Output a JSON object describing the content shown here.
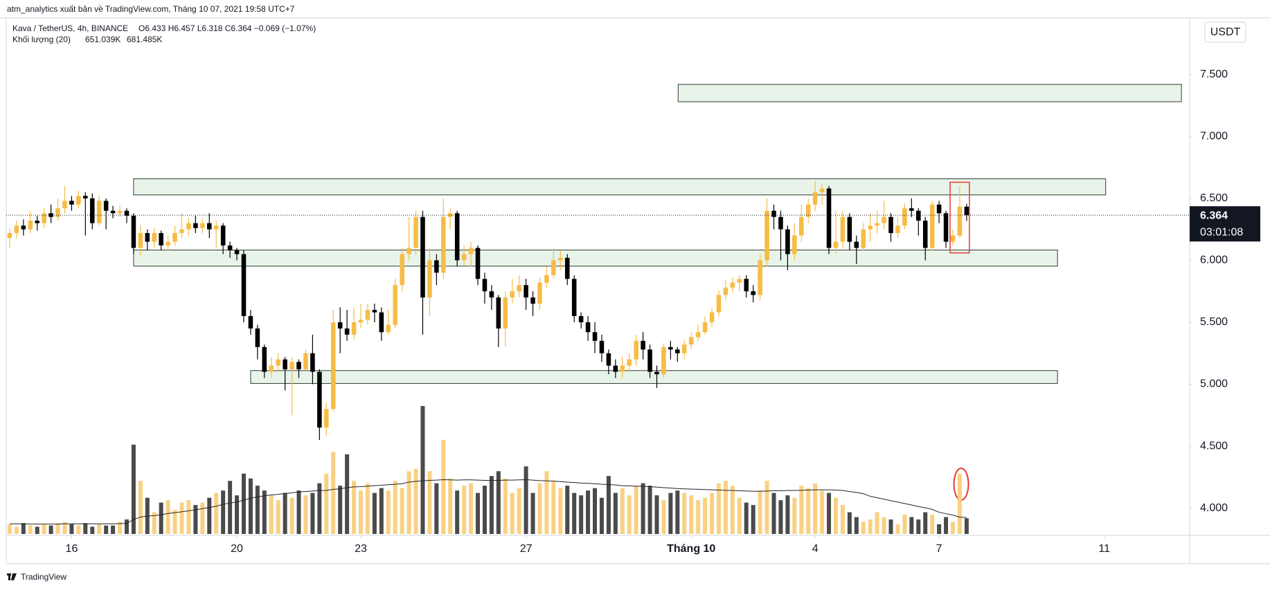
{
  "header": {
    "byline": "atm_analytics xuất bản về TradingView.com, Tháng 10 07, 2021 19:58 UTC+7"
  },
  "chart_data": {
    "type": "candlestick",
    "title": "Kava / TetherUS, 4h, BINANCE",
    "ohlc_legend": "O6.433 H6.457 L6.318 C6.364 −0.069 (−1.07%)",
    "volume_legend": {
      "name": "Khối lượng (20)",
      "value": "651.039K",
      "ma": "681.485K"
    },
    "currency": "USDT",
    "last_price_label": "6.364",
    "countdown": "03:01:08",
    "open": [
      6.18,
      6.22,
      6.28,
      6.25,
      6.32,
      6.3,
      6.38,
      6.35,
      6.42,
      6.48,
      6.45,
      6.52,
      6.5,
      6.3,
      6.48,
      6.4,
      6.38,
      6.4,
      6.36,
      6.1,
      6.22,
      6.15,
      6.22,
      6.12,
      6.15,
      6.22,
      6.25,
      6.3,
      6.26,
      6.3,
      6.25,
      6.28,
      6.12,
      6.08,
      6.05,
      5.55,
      5.45,
      5.3,
      5.1,
      5.15,
      5.2,
      5.12,
      5.18,
      5.12,
      5.25,
      5.1,
      4.65,
      4.8,
      5.5,
      5.45,
      5.4,
      5.5,
      5.52,
      5.6,
      5.58,
      5.42,
      5.48,
      5.8,
      6.05,
      6.1,
      6.35,
      5.7,
      6.0,
      5.9,
      6.35,
      6.38,
      6.0,
      6.05,
      6.1,
      5.85,
      5.75,
      5.7,
      5.45,
      5.7,
      5.75,
      5.8,
      5.7,
      5.65,
      5.82,
      5.88,
      6.0,
      6.02,
      5.85,
      5.55,
      5.5,
      5.42,
      5.35,
      5.25,
      5.15,
      5.1,
      5.15,
      5.2,
      5.35,
      5.28,
      5.1,
      5.08,
      5.3,
      5.28,
      5.25,
      5.32,
      5.38,
      5.42,
      5.5,
      5.58,
      5.72,
      5.78,
      5.82,
      5.85,
      5.75,
      5.72,
      6.0,
      6.4,
      6.35,
      6.25,
      6.05,
      6.2,
      6.35,
      6.45,
      6.55,
      6.58,
      6.1,
      6.15,
      6.35,
      6.15,
      6.1,
      6.25,
      6.28,
      6.3,
      6.35,
      6.22,
      6.28,
      6.42,
      6.4,
      6.32,
      6.1,
      6.45,
      6.38,
      6.15,
      6.2,
      6.433
    ],
    "high": [
      6.26,
      6.32,
      6.33,
      6.4,
      6.36,
      6.42,
      6.45,
      6.5,
      6.6,
      6.52,
      6.56,
      6.55,
      6.54,
      6.52,
      6.5,
      6.44,
      6.44,
      6.42,
      6.38,
      6.28,
      6.25,
      6.26,
      6.24,
      6.2,
      6.28,
      6.38,
      6.34,
      6.36,
      6.34,
      6.38,
      6.32,
      6.3,
      6.15,
      6.1,
      6.08,
      5.6,
      5.48,
      5.32,
      5.22,
      5.25,
      5.22,
      5.22,
      5.2,
      5.28,
      5.4,
      5.12,
      4.85,
      5.6,
      5.62,
      5.6,
      5.62,
      5.65,
      5.65,
      5.65,
      5.62,
      5.6,
      5.85,
      6.1,
      6.35,
      6.4,
      6.4,
      6.1,
      6.05,
      6.5,
      6.42,
      6.4,
      6.12,
      6.15,
      6.12,
      5.9,
      5.8,
      5.72,
      5.75,
      5.85,
      5.88,
      5.85,
      5.75,
      5.86,
      5.95,
      6.1,
      6.08,
      6.05,
      5.88,
      5.58,
      5.55,
      5.5,
      5.4,
      5.28,
      5.2,
      5.22,
      5.25,
      5.4,
      5.42,
      5.32,
      5.15,
      5.33,
      5.35,
      5.3,
      5.36,
      5.42,
      5.48,
      5.55,
      5.62,
      5.76,
      5.84,
      5.86,
      5.88,
      5.88,
      5.8,
      6.05,
      6.5,
      6.45,
      6.4,
      6.28,
      6.3,
      6.45,
      6.5,
      6.64,
      6.62,
      6.6,
      6.4,
      6.4,
      6.38,
      6.2,
      6.3,
      6.38,
      6.4,
      6.48,
      6.38,
      6.35,
      6.46,
      6.5,
      6.42,
      6.35,
      6.48,
      6.48,
      6.4,
      6.25,
      6.6,
      6.457
    ],
    "low": [
      6.1,
      6.18,
      6.2,
      6.22,
      6.24,
      6.26,
      6.3,
      6.32,
      6.38,
      6.4,
      6.42,
      6.2,
      6.25,
      6.28,
      6.25,
      6.34,
      6.35,
      6.3,
      6.05,
      6.04,
      6.08,
      6.1,
      6.08,
      6.08,
      6.12,
      6.18,
      6.2,
      6.22,
      6.22,
      6.18,
      6.1,
      6.05,
      6.02,
      6.0,
      5.5,
      5.4,
      5.2,
      5.05,
      5.05,
      5.1,
      4.95,
      4.75,
      5.05,
      5.1,
      5.0,
      4.55,
      4.58,
      4.78,
      5.25,
      5.35,
      5.36,
      5.45,
      5.48,
      5.5,
      5.35,
      5.4,
      5.45,
      5.75,
      6.0,
      6.05,
      5.4,
      5.55,
      5.8,
      5.85,
      6.25,
      5.95,
      5.96,
      5.95,
      5.8,
      5.65,
      5.6,
      5.3,
      5.3,
      5.65,
      5.7,
      5.6,
      5.55,
      5.6,
      5.78,
      5.85,
      5.92,
      5.8,
      5.5,
      5.45,
      5.35,
      5.25,
      5.18,
      5.08,
      5.05,
      5.05,
      5.1,
      5.15,
      5.2,
      5.05,
      4.97,
      5.05,
      5.2,
      5.18,
      5.2,
      5.28,
      5.35,
      5.4,
      5.46,
      5.55,
      5.68,
      5.74,
      5.75,
      5.7,
      5.66,
      5.68,
      5.95,
      6.25,
      6.0,
      5.92,
      6.0,
      6.15,
      6.3,
      6.4,
      6.45,
      6.05,
      6.05,
      6.1,
      6.08,
      5.97,
      6.08,
      6.15,
      6.22,
      6.25,
      6.15,
      6.18,
      6.25,
      6.35,
      6.2,
      6.0,
      6.08,
      6.3,
      6.1,
      6.12,
      6.18,
      6.318
    ],
    "close": [
      6.22,
      6.28,
      6.25,
      6.32,
      6.3,
      6.38,
      6.35,
      6.42,
      6.48,
      6.45,
      6.52,
      6.5,
      6.3,
      6.48,
      6.4,
      6.38,
      6.4,
      6.36,
      6.1,
      6.22,
      6.15,
      6.22,
      6.12,
      6.15,
      6.22,
      6.25,
      6.3,
      6.26,
      6.3,
      6.25,
      6.28,
      6.12,
      6.08,
      6.05,
      5.55,
      5.45,
      5.3,
      5.1,
      5.15,
      5.2,
      5.12,
      5.18,
      5.12,
      5.25,
      5.1,
      4.65,
      4.8,
      5.5,
      5.45,
      5.4,
      5.5,
      5.52,
      5.6,
      5.58,
      5.42,
      5.48,
      5.8,
      6.05,
      6.1,
      6.35,
      5.7,
      6.0,
      5.9,
      6.35,
      6.38,
      6.0,
      6.05,
      6.1,
      5.85,
      5.75,
      5.7,
      5.45,
      5.7,
      5.75,
      5.8,
      5.7,
      5.65,
      5.82,
      5.88,
      6.0,
      6.02,
      5.85,
      5.55,
      5.5,
      5.42,
      5.35,
      5.25,
      5.15,
      5.1,
      5.15,
      5.2,
      5.35,
      5.28,
      5.1,
      5.08,
      5.3,
      5.28,
      5.25,
      5.32,
      5.38,
      5.42,
      5.5,
      5.58,
      5.72,
      5.78,
      5.82,
      5.85,
      5.75,
      5.72,
      6.0,
      6.4,
      6.35,
      6.25,
      6.05,
      6.2,
      6.35,
      6.45,
      6.55,
      6.58,
      6.1,
      6.15,
      6.35,
      6.15,
      6.1,
      6.25,
      6.28,
      6.3,
      6.35,
      6.22,
      6.28,
      6.42,
      6.4,
      6.32,
      6.1,
      6.45,
      6.38,
      6.15,
      6.2,
      6.433,
      6.364
    ],
    "volume": [
      400,
      300,
      450,
      350,
      300,
      400,
      350,
      450,
      500,
      400,
      350,
      450,
      300,
      400,
      350,
      350,
      500,
      600,
      3700,
      2200,
      1500,
      900,
      1300,
      1400,
      1000,
      1300,
      1400,
      1200,
      1300,
      1500,
      1700,
      1800,
      2200,
      1600,
      2500,
      2300,
      2000,
      1800,
      1600,
      1400,
      1700,
      1500,
      1800,
      1600,
      1700,
      2100,
      2500,
      3400,
      2000,
      3300,
      2200,
      1800,
      2100,
      1700,
      1900,
      1800,
      2200,
      1900,
      2600,
      2700,
      5300,
      2600,
      2100,
      3900,
      2300,
      1800,
      2000,
      2100,
      1700,
      2000,
      2400,
      2600,
      2300,
      1700,
      1900,
      2800,
      1700,
      2100,
      2600,
      2200,
      1900,
      2000,
      1700,
      1600,
      1800,
      1900,
      1500,
      2400,
      1700,
      1900,
      1600,
      2000,
      2100,
      2000,
      1600,
      1400,
      1700,
      1800,
      1700,
      1600,
      1400,
      1500,
      1700,
      2100,
      2200,
      2000,
      1500,
      1300,
      1200,
      1800,
      2200,
      1700,
      1400,
      1600,
      1500,
      2000,
      1900,
      2100,
      1800,
      1700,
      1500,
      1200,
      900,
      700,
      500,
      600,
      900,
      700,
      600,
      400,
      800,
      700,
      600,
      900,
      800,
      400,
      700,
      500,
      2500,
      651.039
    ],
    "volume_ma": [
      420,
      420,
      420,
      410,
      410,
      410,
      410,
      410,
      420,
      420,
      420,
      420,
      420,
      420,
      420,
      420,
      430,
      440,
      600,
      700,
      740,
      760,
      800,
      850,
      880,
      920,
      960,
      1000,
      1050,
      1100,
      1150,
      1230,
      1280,
      1330,
      1400,
      1480,
      1540,
      1580,
      1620,
      1640,
      1680,
      1700,
      1740,
      1760,
      1780,
      1800,
      1800,
      1850,
      1870,
      1920,
      1950,
      1960,
      1980,
      2000,
      2020,
      2040,
      2060,
      2080,
      2150,
      2180,
      2200,
      2220,
      2230,
      2250,
      2240,
      2230,
      2240,
      2240,
      2230,
      2220,
      2220,
      2220,
      2230,
      2230,
      2240,
      2250,
      2230,
      2210,
      2200,
      2190,
      2170,
      2150,
      2130,
      2110,
      2100,
      2080,
      2060,
      2050,
      2030,
      2000,
      1990,
      1980,
      1970,
      1960,
      1940,
      1920,
      1900,
      1880,
      1870,
      1860,
      1850,
      1840,
      1830,
      1820,
      1810,
      1800,
      1790,
      1780,
      1770,
      1770,
      1780,
      1790,
      1790,
      1800,
      1800,
      1810,
      1820,
      1830,
      1830,
      1830,
      1820,
      1800,
      1760,
      1720,
      1670,
      1560,
      1500,
      1440,
      1380,
      1320,
      1260,
      1200,
      1140,
      1080,
      1020,
      900,
      840,
      780,
      700,
      681.485
    ],
    "up_color": "#f6bc45",
    "down_color": "#000000",
    "volume_up_color": "#f9d183",
    "volume_down_color": "#4a4a4a",
    "ma_color": "#222222",
    "xlim": [
      -0.5,
      171.4
    ],
    "xticks": [
      {
        "value": 9,
        "label": "16"
      },
      {
        "value": 33,
        "label": "20"
      },
      {
        "value": 51,
        "label": "23"
      },
      {
        "value": 75,
        "label": "27"
      },
      {
        "value": 99,
        "label": "Tháng 10"
      },
      {
        "value": 117,
        "label": "4"
      },
      {
        "value": 135,
        "label": "7"
      },
      {
        "value": 159,
        "label": "11"
      }
    ],
    "ylim": [
      3.78,
      7.956
    ],
    "yticks": [
      {
        "value": 4,
        "label": "4.000"
      },
      {
        "value": 4.5,
        "label": "4.500"
      },
      {
        "value": 5,
        "label": "5.000"
      },
      {
        "value": 5.5,
        "label": "5.500"
      },
      {
        "value": 6,
        "label": "6.000"
      },
      {
        "value": 6.5,
        "label": "6.500"
      },
      {
        "value": 7,
        "label": "7.000"
      },
      {
        "value": 7.5,
        "label": "7.500"
      }
    ],
    "volume_ylim": [
      0,
      5300
    ],
    "grid": false,
    "zones": [
      {
        "x": [
          97.1,
          170.2
        ],
        "low": 7.28,
        "high": 7.42
      },
      {
        "x": [
          18,
          159.2
        ],
        "low": 6.528,
        "high": 6.658
      },
      {
        "x": [
          18,
          152.2
        ],
        "low": 5.953,
        "high": 6.083
      },
      {
        "x": [
          35,
          152.2
        ],
        "low": 5.006,
        "high": 5.11
      }
    ],
    "zone_fill": "#e8f4e9",
    "zone_stroke": "#2f3b30",
    "highlight": {
      "x": [
        136.6,
        139.4
      ],
      "low": 6.06,
      "high": 6.63,
      "color": "#e53935"
    }
  },
  "footer": {
    "brand": "TradingView"
  }
}
